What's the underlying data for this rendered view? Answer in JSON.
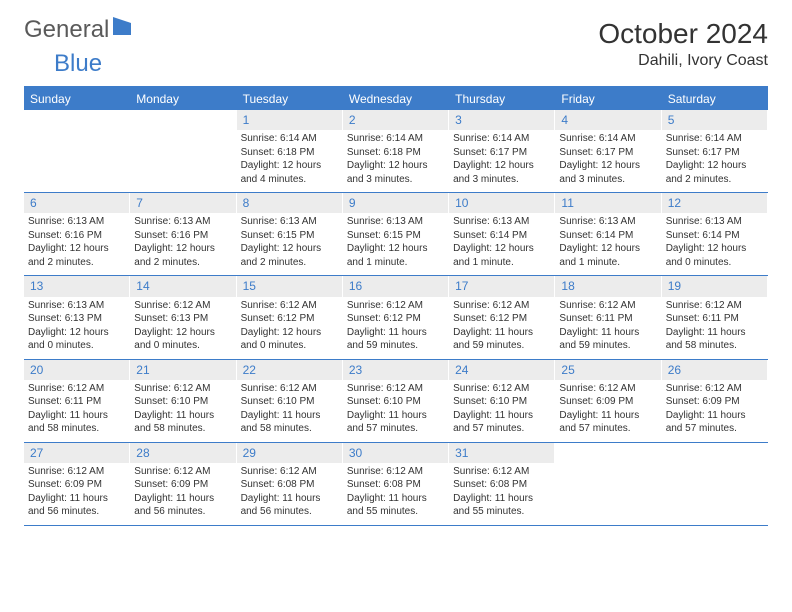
{
  "brand": {
    "part1": "General",
    "part2": "Blue"
  },
  "title": "October 2024",
  "location": "Dahili, Ivory Coast",
  "dow": [
    "Sunday",
    "Monday",
    "Tuesday",
    "Wednesday",
    "Thursday",
    "Friday",
    "Saturday"
  ],
  "colors": {
    "accent": "#3d7cc9",
    "dow_text": "#ffffff",
    "daynum_bg": "#ececec",
    "text": "#333333",
    "bg": "#ffffff"
  },
  "weeks": [
    [
      {
        "n": "",
        "sr": "",
        "ss": "",
        "dl1": "",
        "dl2": ""
      },
      {
        "n": "",
        "sr": "",
        "ss": "",
        "dl1": "",
        "dl2": ""
      },
      {
        "n": "1",
        "sr": "Sunrise: 6:14 AM",
        "ss": "Sunset: 6:18 PM",
        "dl1": "Daylight: 12 hours",
        "dl2": "and 4 minutes."
      },
      {
        "n": "2",
        "sr": "Sunrise: 6:14 AM",
        "ss": "Sunset: 6:18 PM",
        "dl1": "Daylight: 12 hours",
        "dl2": "and 3 minutes."
      },
      {
        "n": "3",
        "sr": "Sunrise: 6:14 AM",
        "ss": "Sunset: 6:17 PM",
        "dl1": "Daylight: 12 hours",
        "dl2": "and 3 minutes."
      },
      {
        "n": "4",
        "sr": "Sunrise: 6:14 AM",
        "ss": "Sunset: 6:17 PM",
        "dl1": "Daylight: 12 hours",
        "dl2": "and 3 minutes."
      },
      {
        "n": "5",
        "sr": "Sunrise: 6:14 AM",
        "ss": "Sunset: 6:17 PM",
        "dl1": "Daylight: 12 hours",
        "dl2": "and 2 minutes."
      }
    ],
    [
      {
        "n": "6",
        "sr": "Sunrise: 6:13 AM",
        "ss": "Sunset: 6:16 PM",
        "dl1": "Daylight: 12 hours",
        "dl2": "and 2 minutes."
      },
      {
        "n": "7",
        "sr": "Sunrise: 6:13 AM",
        "ss": "Sunset: 6:16 PM",
        "dl1": "Daylight: 12 hours",
        "dl2": "and 2 minutes."
      },
      {
        "n": "8",
        "sr": "Sunrise: 6:13 AM",
        "ss": "Sunset: 6:15 PM",
        "dl1": "Daylight: 12 hours",
        "dl2": "and 2 minutes."
      },
      {
        "n": "9",
        "sr": "Sunrise: 6:13 AM",
        "ss": "Sunset: 6:15 PM",
        "dl1": "Daylight: 12 hours",
        "dl2": "and 1 minute."
      },
      {
        "n": "10",
        "sr": "Sunrise: 6:13 AM",
        "ss": "Sunset: 6:14 PM",
        "dl1": "Daylight: 12 hours",
        "dl2": "and 1 minute."
      },
      {
        "n": "11",
        "sr": "Sunrise: 6:13 AM",
        "ss": "Sunset: 6:14 PM",
        "dl1": "Daylight: 12 hours",
        "dl2": "and 1 minute."
      },
      {
        "n": "12",
        "sr": "Sunrise: 6:13 AM",
        "ss": "Sunset: 6:14 PM",
        "dl1": "Daylight: 12 hours",
        "dl2": "and 0 minutes."
      }
    ],
    [
      {
        "n": "13",
        "sr": "Sunrise: 6:13 AM",
        "ss": "Sunset: 6:13 PM",
        "dl1": "Daylight: 12 hours",
        "dl2": "and 0 minutes."
      },
      {
        "n": "14",
        "sr": "Sunrise: 6:12 AM",
        "ss": "Sunset: 6:13 PM",
        "dl1": "Daylight: 12 hours",
        "dl2": "and 0 minutes."
      },
      {
        "n": "15",
        "sr": "Sunrise: 6:12 AM",
        "ss": "Sunset: 6:12 PM",
        "dl1": "Daylight: 12 hours",
        "dl2": "and 0 minutes."
      },
      {
        "n": "16",
        "sr": "Sunrise: 6:12 AM",
        "ss": "Sunset: 6:12 PM",
        "dl1": "Daylight: 11 hours",
        "dl2": "and 59 minutes."
      },
      {
        "n": "17",
        "sr": "Sunrise: 6:12 AM",
        "ss": "Sunset: 6:12 PM",
        "dl1": "Daylight: 11 hours",
        "dl2": "and 59 minutes."
      },
      {
        "n": "18",
        "sr": "Sunrise: 6:12 AM",
        "ss": "Sunset: 6:11 PM",
        "dl1": "Daylight: 11 hours",
        "dl2": "and 59 minutes."
      },
      {
        "n": "19",
        "sr": "Sunrise: 6:12 AM",
        "ss": "Sunset: 6:11 PM",
        "dl1": "Daylight: 11 hours",
        "dl2": "and 58 minutes."
      }
    ],
    [
      {
        "n": "20",
        "sr": "Sunrise: 6:12 AM",
        "ss": "Sunset: 6:11 PM",
        "dl1": "Daylight: 11 hours",
        "dl2": "and 58 minutes."
      },
      {
        "n": "21",
        "sr": "Sunrise: 6:12 AM",
        "ss": "Sunset: 6:10 PM",
        "dl1": "Daylight: 11 hours",
        "dl2": "and 58 minutes."
      },
      {
        "n": "22",
        "sr": "Sunrise: 6:12 AM",
        "ss": "Sunset: 6:10 PM",
        "dl1": "Daylight: 11 hours",
        "dl2": "and 58 minutes."
      },
      {
        "n": "23",
        "sr": "Sunrise: 6:12 AM",
        "ss": "Sunset: 6:10 PM",
        "dl1": "Daylight: 11 hours",
        "dl2": "and 57 minutes."
      },
      {
        "n": "24",
        "sr": "Sunrise: 6:12 AM",
        "ss": "Sunset: 6:10 PM",
        "dl1": "Daylight: 11 hours",
        "dl2": "and 57 minutes."
      },
      {
        "n": "25",
        "sr": "Sunrise: 6:12 AM",
        "ss": "Sunset: 6:09 PM",
        "dl1": "Daylight: 11 hours",
        "dl2": "and 57 minutes."
      },
      {
        "n": "26",
        "sr": "Sunrise: 6:12 AM",
        "ss": "Sunset: 6:09 PM",
        "dl1": "Daylight: 11 hours",
        "dl2": "and 57 minutes."
      }
    ],
    [
      {
        "n": "27",
        "sr": "Sunrise: 6:12 AM",
        "ss": "Sunset: 6:09 PM",
        "dl1": "Daylight: 11 hours",
        "dl2": "and 56 minutes."
      },
      {
        "n": "28",
        "sr": "Sunrise: 6:12 AM",
        "ss": "Sunset: 6:09 PM",
        "dl1": "Daylight: 11 hours",
        "dl2": "and 56 minutes."
      },
      {
        "n": "29",
        "sr": "Sunrise: 6:12 AM",
        "ss": "Sunset: 6:08 PM",
        "dl1": "Daylight: 11 hours",
        "dl2": "and 56 minutes."
      },
      {
        "n": "30",
        "sr": "Sunrise: 6:12 AM",
        "ss": "Sunset: 6:08 PM",
        "dl1": "Daylight: 11 hours",
        "dl2": "and 55 minutes."
      },
      {
        "n": "31",
        "sr": "Sunrise: 6:12 AM",
        "ss": "Sunset: 6:08 PM",
        "dl1": "Daylight: 11 hours",
        "dl2": "and 55 minutes."
      },
      {
        "n": "",
        "sr": "",
        "ss": "",
        "dl1": "",
        "dl2": ""
      },
      {
        "n": "",
        "sr": "",
        "ss": "",
        "dl1": "",
        "dl2": ""
      }
    ]
  ]
}
